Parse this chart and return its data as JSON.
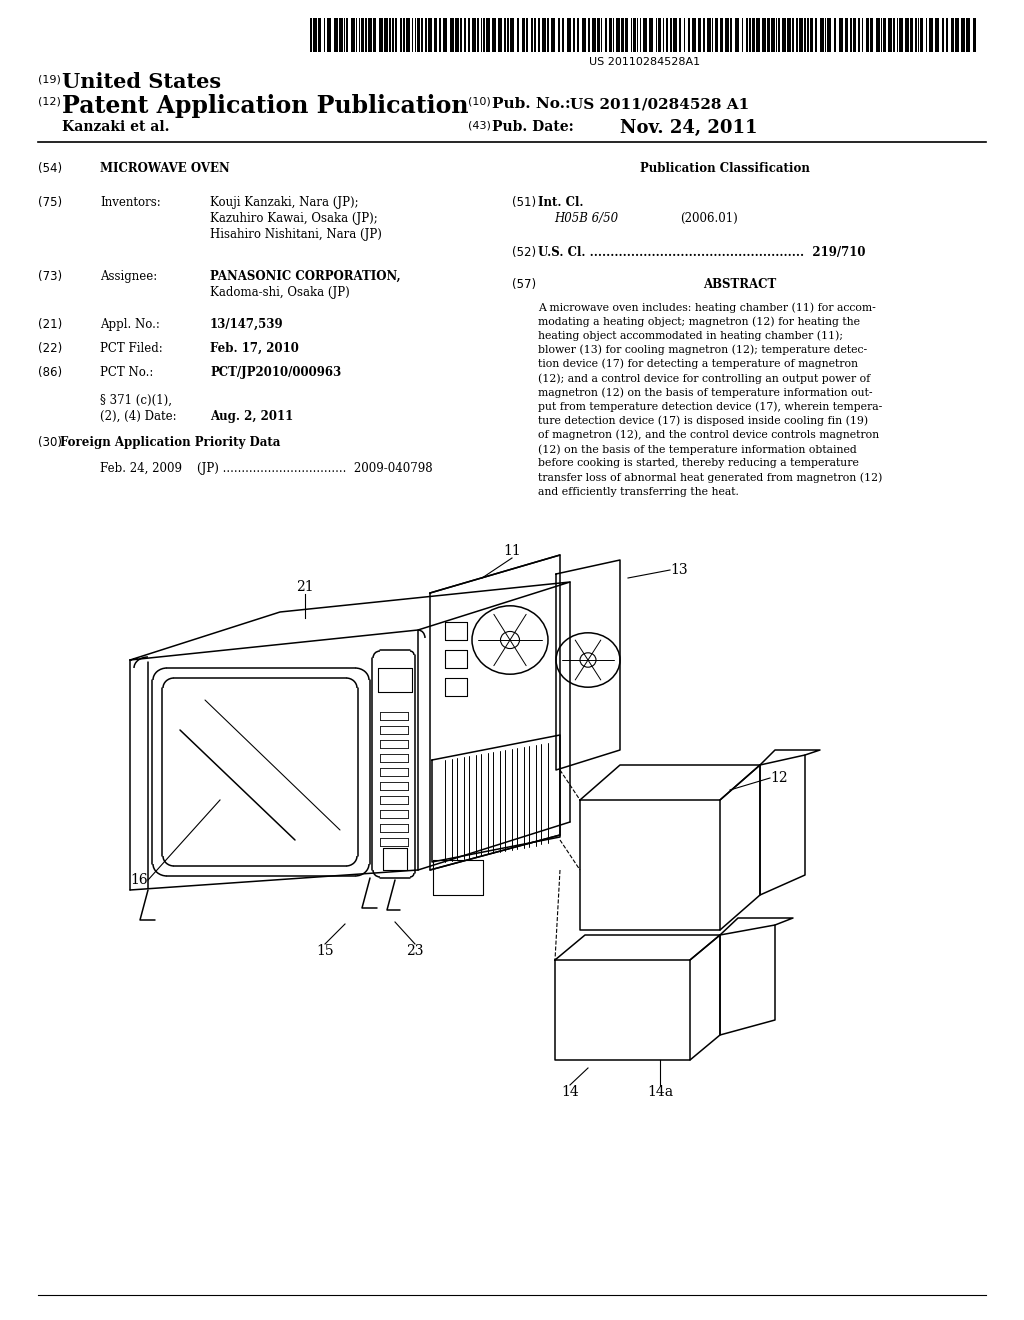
{
  "background_color": "#ffffff",
  "barcode_text": "US 20110284528A1",
  "header_19": "(19)",
  "header_19_text": "United States",
  "header_12": "(12)",
  "header_12_text": "Patent Application Publication",
  "header_10_label": "(10)",
  "header_10_text": "Pub. No.:",
  "header_10_value": "US 2011/0284528 A1",
  "author_left": "Kanzaki et al.",
  "header_43_label": "(43)",
  "header_43_text": "Pub. Date:",
  "header_43_value": "Nov. 24, 2011",
  "field_54_label": "(54)",
  "field_54_title": "MICROWAVE OVEN",
  "field_75_label": "(75)",
  "field_75_key": "Inventors:",
  "field_75_line1": "Kouji Kanzaki, Nara (JP);",
  "field_75_line2": "Kazuhiro Kawai, Osaka (JP);",
  "field_75_line3": "Hisahiro Nishitani, Nara (JP)",
  "field_73_label": "(73)",
  "field_73_key": "Assignee:",
  "field_73_line1": "PANASONIC CORPORATION,",
  "field_73_line2": "Kadoma-shi, Osaka (JP)",
  "field_21_label": "(21)",
  "field_21_key": "Appl. No.:",
  "field_21_val": "13/147,539",
  "field_22_label": "(22)",
  "field_22_key": "PCT Filed:",
  "field_22_val": "Feb. 17, 2010",
  "field_86_label": "(86)",
  "field_86_key": "PCT No.:",
  "field_86_val": "PCT/JP2010/000963",
  "field_371_line1": "§ 371 (c)(1),",
  "field_371_line2": "(2), (4) Date:",
  "field_371_val": "Aug. 2, 2011",
  "field_30_label": "(30)",
  "field_30_title": "Foreign Application Priority Data",
  "field_30_val": "Feb. 24, 2009    (JP) .................................  2009-040798",
  "right_pub_class_title": "Publication Classification",
  "field_51_label": "(51)",
  "field_51_key": "Int. Cl.",
  "field_51_sub": "H05B 6/50",
  "field_51_year": "(2006.01)",
  "field_52_label": "(52)",
  "field_52_text": "U.S. Cl. ....................................................  219/710",
  "field_57_label": "(57)",
  "field_57_title": "ABSTRACT",
  "abstract_text": "A microwave oven includes: heating chamber (11) for accom-\nmodating a heating object; magnetron (12) for heating the\nheating object accommodated in heating chamber (11);\nblower (13) for cooling magnetron (12); temperature detec-\ntion device (17) for detecting a temperature of magnetron\n(12); and a control device for controlling an output power of\nmagnetron (12) on the basis of temperature information out-\nput from temperature detection device (17), wherein tempera-\nture detection device (17) is disposed inside cooling fin (19)\nof magnetron (12), and the control device controls magnetron\n(12) on the basis of the temperature information obtained\nbefore cooking is started, thereby reducing a temperature\ntransfer loss of abnormal heat generated from magnetron (12)\nand efficiently transferring the heat."
}
